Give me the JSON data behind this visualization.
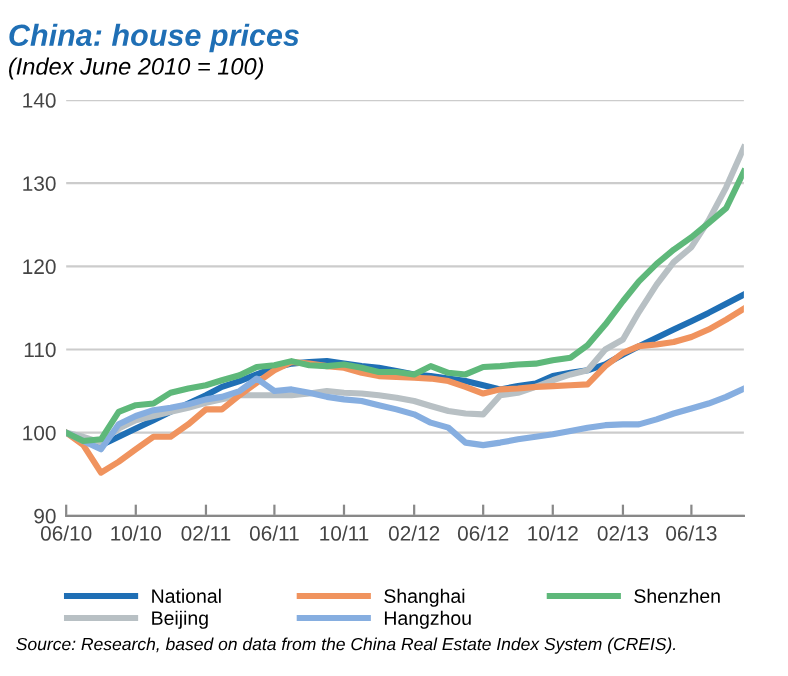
{
  "chart_data": {
    "type": "line",
    "title": "China: house prices",
    "subtitle": "(Index June 2010 = 100)",
    "x": [
      "2010-06",
      "2010-07",
      "2010-08",
      "2010-09",
      "2010-10",
      "2010-11",
      "2010-12",
      "2011-01",
      "2011-02",
      "2011-03",
      "2011-04",
      "2011-05",
      "2011-06",
      "2011-07",
      "2011-08",
      "2011-09",
      "2011-10",
      "2011-11",
      "2011-12",
      "2012-01",
      "2012-02",
      "2012-03",
      "2012-04",
      "2012-05",
      "2012-06",
      "2012-07",
      "2012-08",
      "2012-09",
      "2012-10",
      "2012-11",
      "2012-12",
      "2013-01",
      "2013-02",
      "2013-03",
      "2013-04",
      "2013-05",
      "2013-06",
      "2013-07",
      "2013-08",
      "2013-09"
    ],
    "series": [
      {
        "name": "National",
        "color": "#1f6fb5",
        "values": [
          100,
          99,
          98.5,
          99.5,
          100.5,
          101.5,
          102.5,
          103.5,
          104.5,
          105.5,
          106.2,
          107,
          107.8,
          108.3,
          108.5,
          108.6,
          108.3,
          108,
          107.8,
          107.4,
          107,
          106.8,
          106.5,
          106.2,
          105.7,
          105.2,
          105.6,
          105.9,
          106.8,
          107.2,
          107.5,
          108.2,
          109.4,
          110.4,
          111.4,
          112.4,
          113.4,
          114.4,
          115.5,
          116.6
        ]
      },
      {
        "name": "Beijing",
        "color": "#b8c0c4",
        "values": [
          100,
          99.5,
          98.8,
          100.5,
          101.5,
          102,
          102.5,
          103,
          103.6,
          104,
          104.5,
          104.5,
          104.5,
          104.5,
          104.7,
          105,
          104.8,
          104.7,
          104.5,
          104.2,
          103.8,
          103.2,
          102.6,
          102.3,
          102.2,
          104.5,
          104.8,
          105.5,
          106.3,
          107,
          107.5,
          110,
          111.2,
          114.5,
          117.8,
          120.5,
          122.3,
          125.5,
          129.5,
          134.3
        ]
      },
      {
        "name": "Shanghai",
        "color": "#f0935e",
        "values": [
          100,
          98.5,
          95.2,
          96.5,
          98,
          99.5,
          99.5,
          101,
          102.8,
          102.8,
          104.5,
          106,
          107.5,
          108.5,
          108.3,
          108,
          107.8,
          107.2,
          106.8,
          106.7,
          106.6,
          106.5,
          106.2,
          105.5,
          104.7,
          105.2,
          105.3,
          105.5,
          105.6,
          105.7,
          105.8,
          108,
          109.6,
          110.4,
          110.6,
          110.9,
          111.5,
          112.4,
          113.6,
          114.9
        ]
      },
      {
        "name": "Hangzhou",
        "color": "#86aee0",
        "values": [
          100,
          99,
          98,
          101,
          102,
          102.7,
          103,
          103.4,
          104,
          104.3,
          105,
          106.5,
          105,
          105.2,
          104.8,
          104.3,
          104,
          103.8,
          103.3,
          102.8,
          102.2,
          101.2,
          100.6,
          98.8,
          98.5,
          98.8,
          99.2,
          99.5,
          99.8,
          100.2,
          100.6,
          100.9,
          101,
          101,
          101.6,
          102.3,
          102.9,
          103.5,
          104.3,
          105.3
        ]
      },
      {
        "name": "Shenzhen",
        "color": "#5eb87a",
        "values": [
          100,
          99,
          99.2,
          102.5,
          103.3,
          103.5,
          104.8,
          105.3,
          105.7,
          106.3,
          106.9,
          107.9,
          108.1,
          108.6,
          108.1,
          108,
          108.2,
          107.8,
          107.3,
          107.3,
          107,
          108,
          107.2,
          107,
          107.9,
          108,
          108.2,
          108.3,
          108.7,
          109,
          110.5,
          113,
          115.8,
          118.2,
          120.3,
          122,
          123.5,
          125.2,
          127,
          131.4
        ]
      }
    ],
    "xlim": [
      "2010-06",
      "2013-09"
    ],
    "xticks": [
      {
        "value": "2010-06",
        "label": "06/10"
      },
      {
        "value": "2010-10",
        "label": "10/10"
      },
      {
        "value": "2011-02",
        "label": "02/11"
      },
      {
        "value": "2011-06",
        "label": "06/11"
      },
      {
        "value": "2011-10",
        "label": "10/11"
      },
      {
        "value": "2012-02",
        "label": "02/12"
      },
      {
        "value": "2012-06",
        "label": "06/12"
      },
      {
        "value": "2012-10",
        "label": "10/12"
      },
      {
        "value": "2013-02",
        "label": "02/13"
      },
      {
        "value": "2013-06",
        "label": "06/13"
      }
    ],
    "ylim": [
      90,
      140
    ],
    "yticks": [
      90,
      100,
      110,
      120,
      130,
      140
    ],
    "grid": "y",
    "legend": "bottom",
    "line_style": "solid",
    "marker": "none",
    "annotations": [
      "Source: Research, based on data from the China Real Estate Index System (CREIS)."
    ]
  }
}
